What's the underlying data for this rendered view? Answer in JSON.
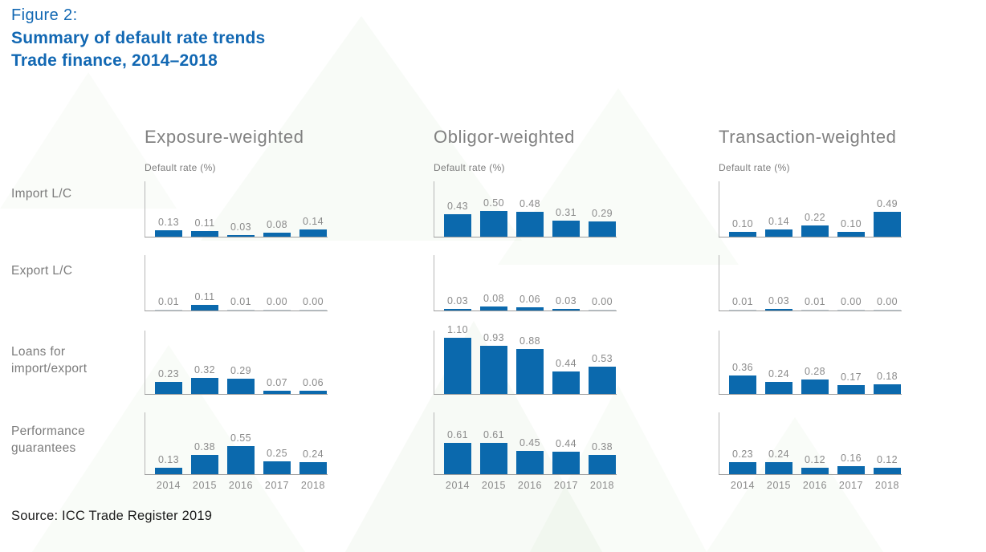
{
  "figure": {
    "label": "Figure 2:",
    "title": "Summary of default rate trends",
    "subtitle": "Trade finance, 2014–2018",
    "source": "Source: ICC Trade Register 2019"
  },
  "columns": [
    "Exposure-weighted",
    "Obligor-weighted",
    "Transaction-weighted"
  ],
  "axis_label": "Default rate (%)",
  "row_labels": [
    "Import L/C",
    "Export L/C",
    "Loans for import/export",
    "Performance guarantees"
  ],
  "colors": {
    "title_blue": "#1268B3",
    "bar_blue": "#0B69AD",
    "zero_bar_gray": "#c9d4dc",
    "text_gray": "#7d7d7d",
    "axis_gray": "#9d9d9d"
  },
  "chart_data": {
    "type": "bar",
    "x": [
      "2014",
      "2015",
      "2016",
      "2017",
      "2018"
    ],
    "ylabel": "Default rate (%)",
    "legend_position": "none",
    "grid": false,
    "groups": [
      {
        "row": "Import L/C",
        "series": [
          {
            "name": "Exposure-weighted",
            "values": [
              0.13,
              0.11,
              0.03,
              0.08,
              0.14
            ]
          },
          {
            "name": "Obligor-weighted",
            "values": [
              0.43,
              0.5,
              0.48,
              0.31,
              0.29
            ]
          },
          {
            "name": "Transaction-weighted",
            "values": [
              0.1,
              0.14,
              0.22,
              0.1,
              0.49
            ]
          }
        ]
      },
      {
        "row": "Export L/C",
        "series": [
          {
            "name": "Exposure-weighted",
            "values": [
              0.01,
              0.11,
              0.01,
              0.0,
              0.0
            ]
          },
          {
            "name": "Obligor-weighted",
            "values": [
              0.03,
              0.08,
              0.06,
              0.03,
              0.0
            ]
          },
          {
            "name": "Transaction-weighted",
            "values": [
              0.01,
              0.03,
              0.01,
              0.0,
              0.0
            ]
          }
        ]
      },
      {
        "row": "Loans for import/export",
        "series": [
          {
            "name": "Exposure-weighted",
            "values": [
              0.23,
              0.32,
              0.29,
              0.07,
              0.06
            ]
          },
          {
            "name": "Obligor-weighted",
            "values": [
              1.1,
              0.93,
              0.88,
              0.44,
              0.53
            ]
          },
          {
            "name": "Transaction-weighted",
            "values": [
              0.36,
              0.24,
              0.28,
              0.17,
              0.18
            ]
          }
        ]
      },
      {
        "row": "Performance guarantees",
        "series": [
          {
            "name": "Exposure-weighted",
            "values": [
              0.13,
              0.38,
              0.55,
              0.25,
              0.24
            ]
          },
          {
            "name": "Obligor-weighted",
            "values": [
              0.61,
              0.61,
              0.45,
              0.44,
              0.38
            ]
          },
          {
            "name": "Transaction-weighted",
            "values": [
              0.23,
              0.24,
              0.12,
              0.16,
              0.12
            ]
          }
        ]
      }
    ]
  }
}
